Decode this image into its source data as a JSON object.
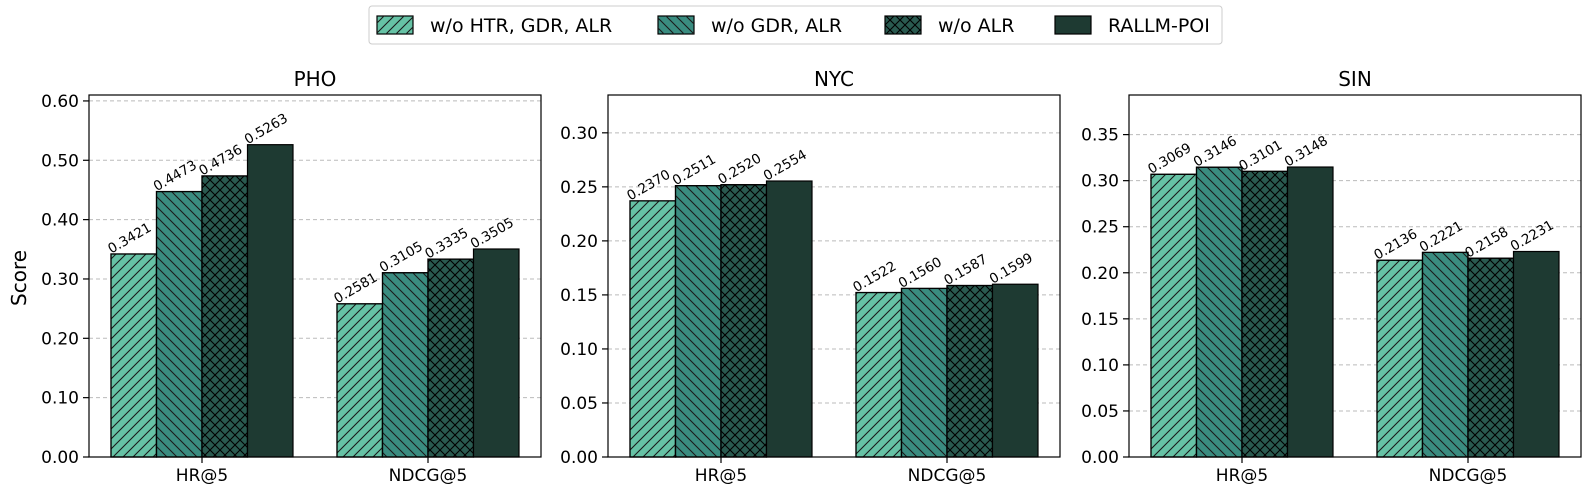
{
  "chart_data": {
    "type": "bar",
    "ylabel": "Score",
    "legend_position": "top-center",
    "grid": true,
    "series_names": [
      "w/o HTR, GDR, ALR",
      "w/o GDR, ALR",
      "w/o ALR",
      "RALLM-POI"
    ],
    "series_colors": [
      "#66c2a5",
      "#3a8c80",
      "#2a5a50",
      "#1e3a32"
    ],
    "series_hatches": [
      "diag-right",
      "diag-left",
      "crosshatch",
      "none"
    ],
    "panels": [
      {
        "title": "PHO",
        "categories": [
          "HR@5",
          "NDCG@5"
        ],
        "ylim": [
          0,
          0.61
        ],
        "yticks": [
          0.0,
          0.1,
          0.2,
          0.3,
          0.4,
          0.5,
          0.6
        ],
        "ytick_labels": [
          "0.00",
          "0.10",
          "0.20",
          "0.30",
          "0.40",
          "0.50",
          "0.60"
        ],
        "series": [
          {
            "name": "w/o HTR, GDR, ALR",
            "values": [
              0.3421,
              0.2581
            ],
            "labels": [
              "0.3421",
              "0.2581"
            ]
          },
          {
            "name": "w/o GDR, ALR",
            "values": [
              0.4473,
              0.3105
            ],
            "labels": [
              "0.4473",
              "0.3105"
            ]
          },
          {
            "name": "w/o ALR",
            "values": [
              0.4736,
              0.3335
            ],
            "labels": [
              "0.4736",
              "0.3335"
            ]
          },
          {
            "name": "RALLM-POI",
            "values": [
              0.5263,
              0.3505
            ],
            "labels": [
              "0.5263",
              "0.3505"
            ]
          }
        ]
      },
      {
        "title": "NYC",
        "categories": [
          "HR@5",
          "NDCG@5"
        ],
        "ylim": [
          0,
          0.335
        ],
        "yticks": [
          0.0,
          0.05,
          0.1,
          0.15,
          0.2,
          0.25,
          0.3
        ],
        "ytick_labels": [
          "0.00",
          "0.05",
          "0.10",
          "0.15",
          "0.20",
          "0.25",
          "0.30"
        ],
        "series": [
          {
            "name": "w/o HTR, GDR, ALR",
            "values": [
              0.237,
              0.1522
            ],
            "labels": [
              "0.2370",
              "0.1522"
            ]
          },
          {
            "name": "w/o GDR, ALR",
            "values": [
              0.2511,
              0.156
            ],
            "labels": [
              "0.2511",
              "0.1560"
            ]
          },
          {
            "name": "w/o ALR",
            "values": [
              0.252,
              0.1587
            ],
            "labels": [
              "0.2520",
              "0.1587"
            ]
          },
          {
            "name": "RALLM-POI",
            "values": [
              0.2554,
              0.1599
            ],
            "labels": [
              "0.2554",
              "0.1599"
            ]
          }
        ]
      },
      {
        "title": "SIN",
        "categories": [
          "HR@5",
          "NDCG@5"
        ],
        "ylim": [
          0,
          0.393
        ],
        "yticks": [
          0.0,
          0.05,
          0.1,
          0.15,
          0.2,
          0.25,
          0.3,
          0.35
        ],
        "ytick_labels": [
          "0.00",
          "0.05",
          "0.10",
          "0.15",
          "0.20",
          "0.25",
          "0.30",
          "0.35"
        ],
        "series": [
          {
            "name": "w/o HTR, GDR, ALR",
            "values": [
              0.3069,
              0.2136
            ],
            "labels": [
              "0.3069",
              "0.2136"
            ]
          },
          {
            "name": "w/o GDR, ALR",
            "values": [
              0.3146,
              0.2221
            ],
            "labels": [
              "0.3146",
              "0.2221"
            ]
          },
          {
            "name": "w/o ALR",
            "values": [
              0.3101,
              0.2158
            ],
            "labels": [
              "0.3101",
              "0.2158"
            ]
          },
          {
            "name": "RALLM-POI",
            "values": [
              0.3148,
              0.2231
            ],
            "labels": [
              "0.3148",
              "0.2231"
            ]
          }
        ]
      }
    ]
  }
}
